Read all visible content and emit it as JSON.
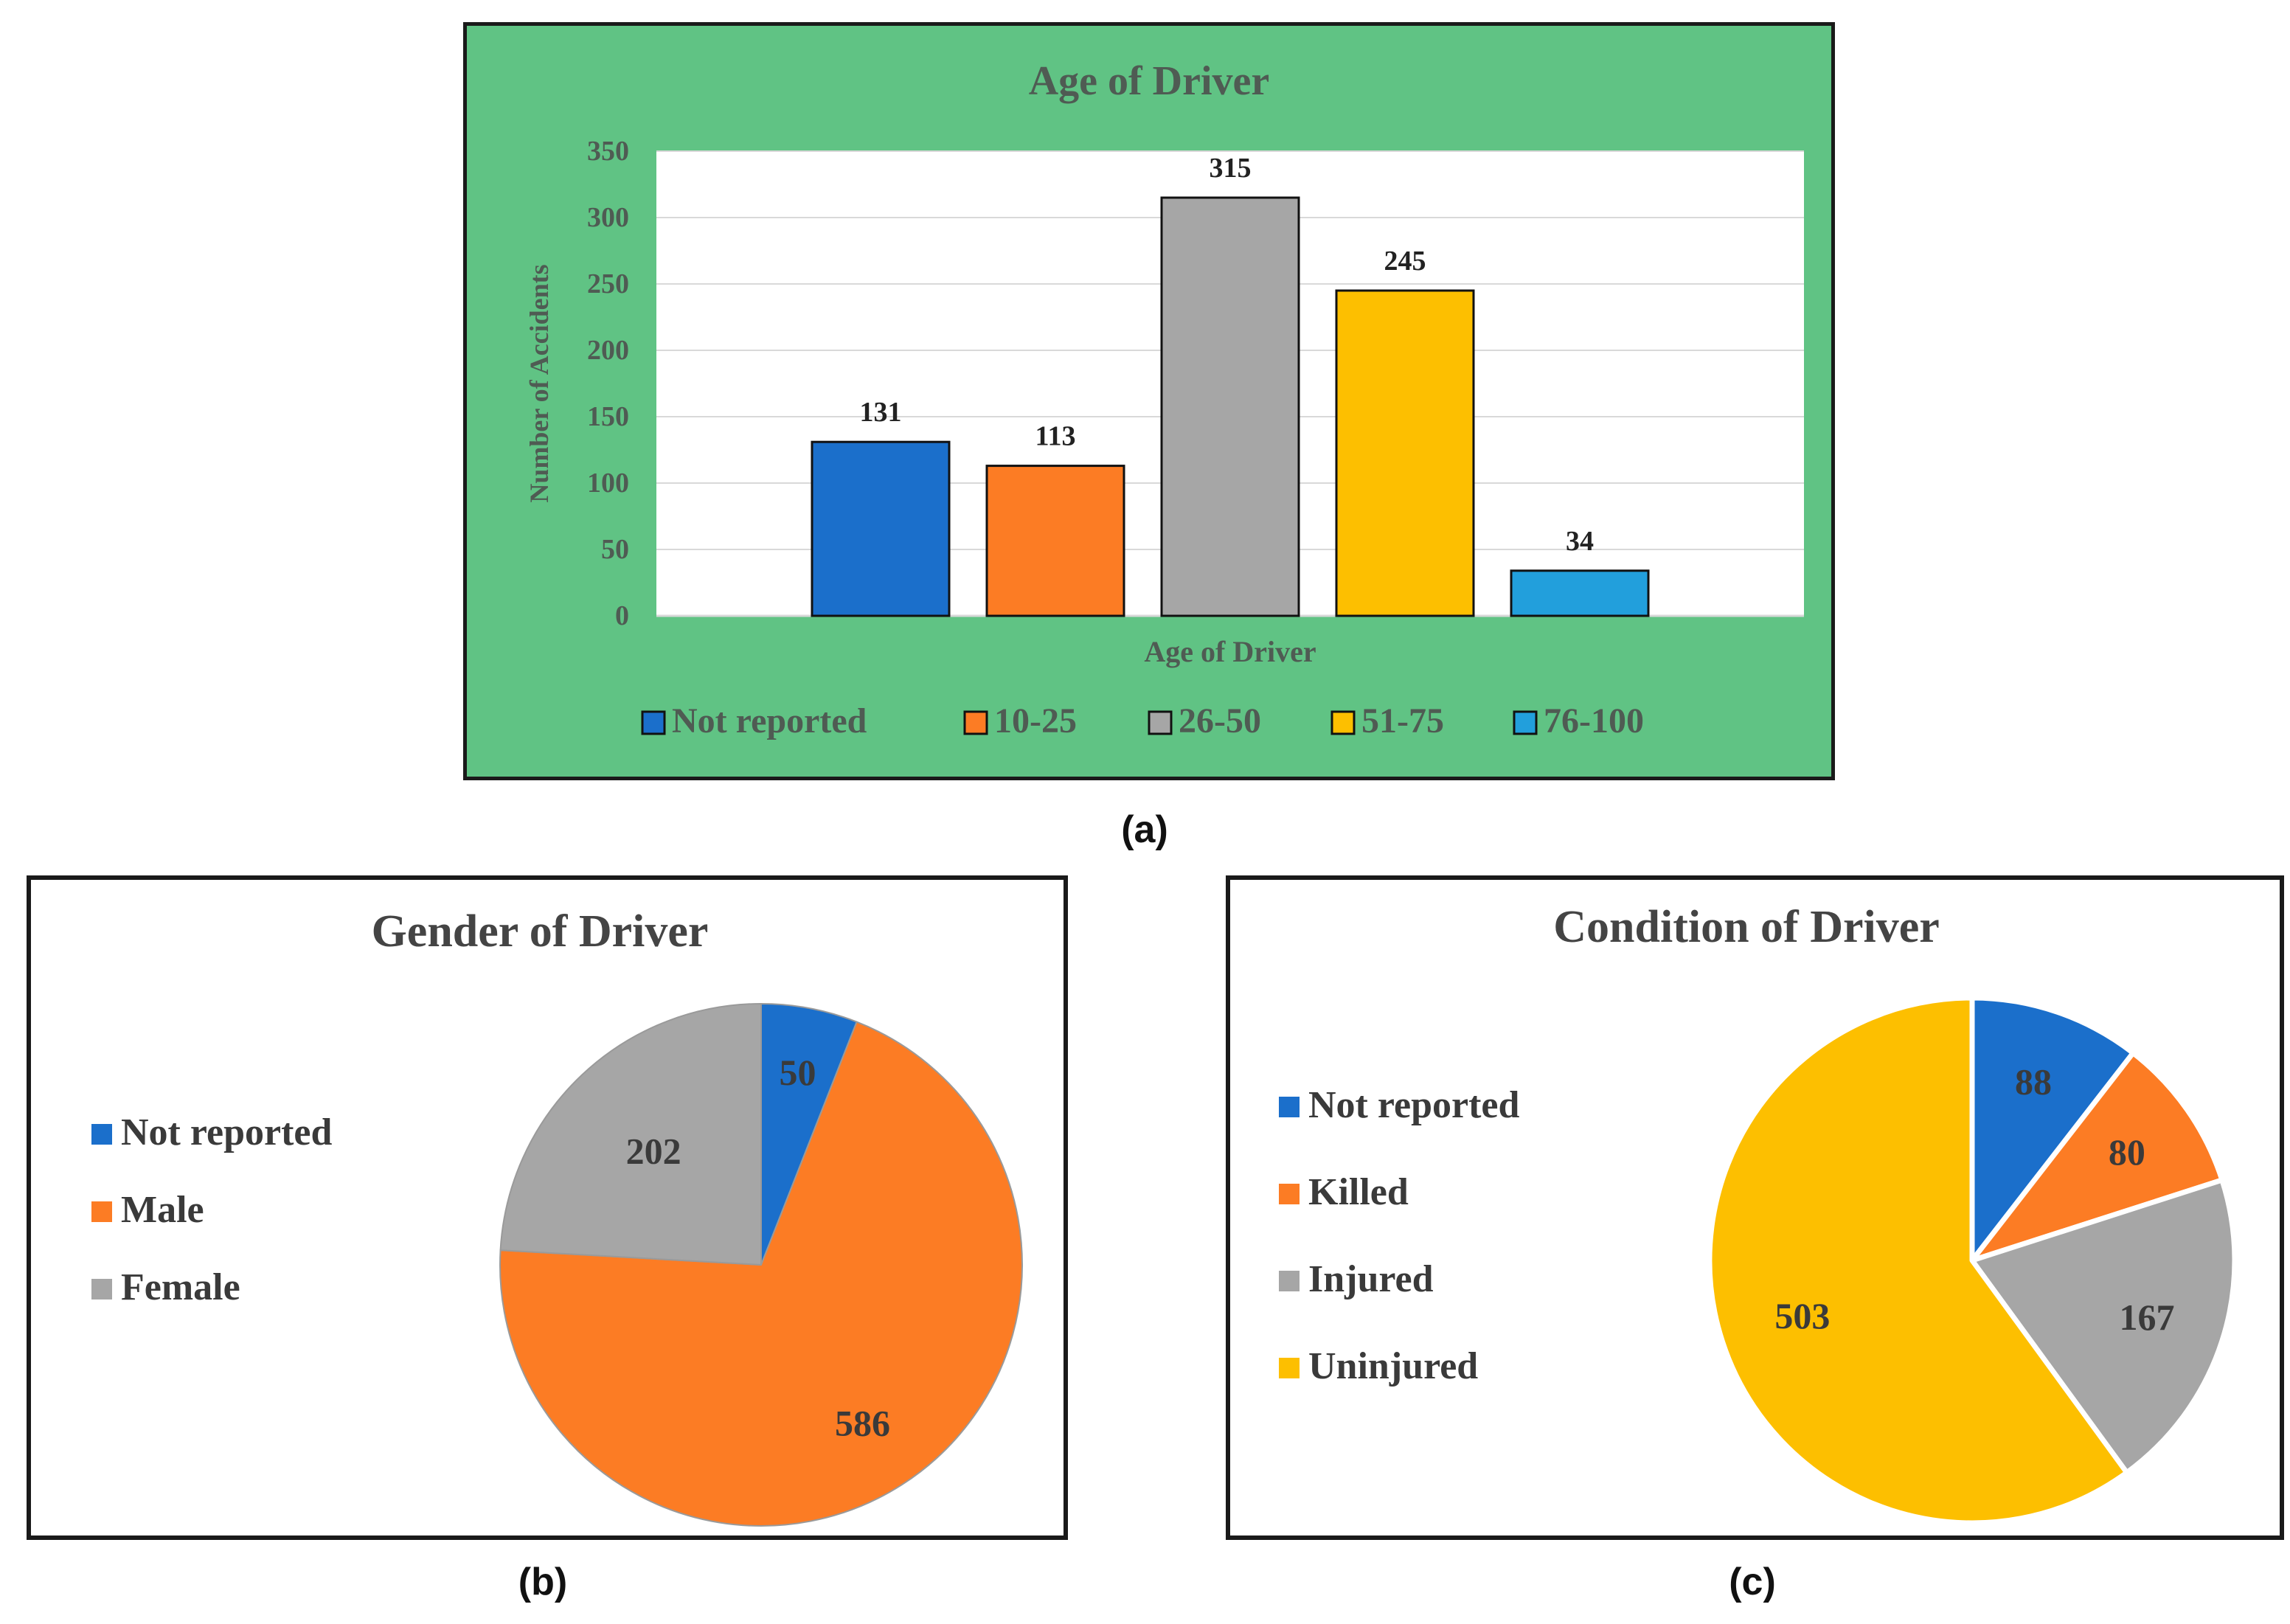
{
  "captions": {
    "a": "(a)",
    "b": "(b)",
    "c": "(c)"
  },
  "chart_data": [
    {
      "type": "bar",
      "title": "Age of Driver",
      "xlabel": "Age of Driver",
      "ylabel": "Number of Accidents",
      "ylim": [
        0,
        350
      ],
      "yticks": [
        0,
        50,
        100,
        150,
        200,
        250,
        300,
        350
      ],
      "grid": true,
      "legend_position": "bottom",
      "categories": [
        "Not reported",
        "10-25",
        "26-50",
        "51-75",
        "76-100"
      ],
      "values": [
        131,
        113,
        315,
        245,
        34
      ],
      "colors": [
        "#1b6fcb",
        "#fc7c24",
        "#a6a6a6",
        "#fdbf00",
        "#229fdc"
      ],
      "background": "#60c384"
    },
    {
      "type": "pie",
      "title": "Gender of Driver",
      "legend_position": "left",
      "categories": [
        "Not reported",
        "Male",
        "Female"
      ],
      "values": [
        50,
        586,
        202
      ],
      "colors": [
        "#1b6fcb",
        "#fc7c24",
        "#a6a6a6"
      ]
    },
    {
      "type": "pie",
      "title": "Condition of Driver",
      "legend_position": "left",
      "categories": [
        "Not reported",
        "Killed",
        "Injured",
        "Uninjured"
      ],
      "values": [
        88,
        80,
        167,
        503
      ],
      "colors": [
        "#1b6fcb",
        "#fc7c24",
        "#a6a6a6",
        "#fdbf00"
      ]
    }
  ]
}
